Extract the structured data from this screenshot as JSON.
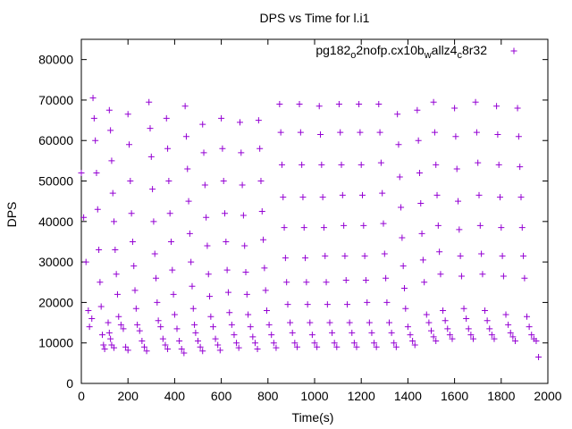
{
  "chart_data": {
    "type": "scatter",
    "title": "DPS vs Time for l.i1",
    "xlabel": "Time(s)",
    "ylabel": "DPS",
    "xlim": [
      0,
      2000
    ],
    "ylim": [
      0,
      85000
    ],
    "x_ticks": [
      0,
      200,
      400,
      600,
      800,
      1000,
      1200,
      1400,
      1600,
      1800,
      2000
    ],
    "y_ticks": [
      0,
      10000,
      20000,
      30000,
      40000,
      50000,
      60000,
      70000,
      80000
    ],
    "grid": false,
    "legend_position": "top-right",
    "marker": "+",
    "series": [
      {
        "name": "pg182_o2nofp.cx10b_wallz4_c8r32",
        "legend_parts": {
          "base": "pg182",
          "sub1": "o",
          "mid1": "2nofp.cx10b",
          "sub2": "w",
          "mid2": "allz4",
          "sub3": "c",
          "tail": "8r32"
        },
        "color": "#9400D3",
        "points": [
          [
            0,
            52000
          ],
          [
            10,
            41000
          ],
          [
            20,
            30000
          ],
          [
            30,
            18000
          ],
          [
            35,
            14000
          ],
          [
            45,
            16000
          ],
          [
            50,
            70500
          ],
          [
            55,
            65500
          ],
          [
            60,
            60000
          ],
          [
            65,
            52000
          ],
          [
            70,
            43000
          ],
          [
            75,
            33000
          ],
          [
            80,
            25000
          ],
          [
            85,
            19000
          ],
          [
            90,
            12000
          ],
          [
            95,
            9500
          ],
          [
            100,
            8500
          ],
          [
            115,
            15000
          ],
          [
            120,
            12500
          ],
          [
            125,
            11000
          ],
          [
            130,
            9500
          ],
          [
            140,
            8800
          ],
          [
            120,
            67500
          ],
          [
            125,
            62500
          ],
          [
            130,
            55000
          ],
          [
            135,
            47000
          ],
          [
            140,
            40000
          ],
          [
            145,
            33000
          ],
          [
            150,
            27000
          ],
          [
            155,
            22000
          ],
          [
            160,
            16500
          ],
          [
            170,
            14500
          ],
          [
            180,
            13500
          ],
          [
            190,
            9000
          ],
          [
            200,
            8200
          ],
          [
            200,
            66500
          ],
          [
            205,
            59000
          ],
          [
            210,
            50000
          ],
          [
            215,
            42000
          ],
          [
            220,
            35000
          ],
          [
            225,
            29000
          ],
          [
            230,
            23000
          ],
          [
            235,
            18500
          ],
          [
            240,
            14500
          ],
          [
            250,
            13000
          ],
          [
            260,
            10500
          ],
          [
            270,
            9000
          ],
          [
            280,
            8000
          ],
          [
            290,
            69500
          ],
          [
            295,
            63000
          ],
          [
            300,
            56000
          ],
          [
            305,
            48000
          ],
          [
            310,
            40000
          ],
          [
            315,
            32000
          ],
          [
            320,
            26000
          ],
          [
            325,
            20000
          ],
          [
            330,
            15500
          ],
          [
            340,
            14000
          ],
          [
            350,
            11000
          ],
          [
            360,
            9500
          ],
          [
            370,
            8500
          ],
          [
            365,
            65500
          ],
          [
            370,
            58000
          ],
          [
            375,
            50000
          ],
          [
            380,
            42000
          ],
          [
            385,
            35000
          ],
          [
            390,
            28000
          ],
          [
            395,
            22000
          ],
          [
            400,
            17000
          ],
          [
            410,
            13500
          ],
          [
            420,
            10500
          ],
          [
            430,
            8500
          ],
          [
            440,
            7500
          ],
          [
            445,
            68500
          ],
          [
            450,
            61000
          ],
          [
            455,
            53000
          ],
          [
            460,
            45000
          ],
          [
            465,
            37000
          ],
          [
            470,
            30000
          ],
          [
            475,
            24000
          ],
          [
            480,
            18500
          ],
          [
            485,
            14500
          ],
          [
            490,
            12500
          ],
          [
            500,
            10500
          ],
          [
            510,
            9000
          ],
          [
            520,
            8000
          ],
          [
            520,
            64000
          ],
          [
            525,
            57000
          ],
          [
            530,
            49000
          ],
          [
            535,
            41000
          ],
          [
            540,
            34000
          ],
          [
            545,
            27000
          ],
          [
            550,
            21500
          ],
          [
            555,
            16500
          ],
          [
            565,
            14000
          ],
          [
            575,
            11000
          ],
          [
            585,
            9500
          ],
          [
            595,
            8200
          ],
          [
            600,
            65500
          ],
          [
            605,
            58000
          ],
          [
            610,
            50000
          ],
          [
            615,
            42000
          ],
          [
            620,
            35000
          ],
          [
            625,
            28000
          ],
          [
            630,
            22500
          ],
          [
            635,
            17500
          ],
          [
            645,
            14500
          ],
          [
            655,
            12000
          ],
          [
            665,
            10000
          ],
          [
            675,
            8800
          ],
          [
            680,
            64500
          ],
          [
            685,
            57000
          ],
          [
            690,
            49000
          ],
          [
            695,
            41500
          ],
          [
            700,
            34000
          ],
          [
            705,
            27500
          ],
          [
            710,
            22000
          ],
          [
            715,
            17000
          ],
          [
            725,
            14000
          ],
          [
            735,
            11500
          ],
          [
            745,
            10000
          ],
          [
            755,
            8500
          ],
          [
            760,
            65000
          ],
          [
            765,
            58000
          ],
          [
            770,
            50000
          ],
          [
            775,
            42500
          ],
          [
            780,
            35500
          ],
          [
            785,
            28500
          ],
          [
            790,
            23000
          ],
          [
            795,
            18000
          ],
          [
            805,
            14500
          ],
          [
            815,
            12000
          ],
          [
            825,
            10000
          ],
          [
            835,
            8800
          ],
          [
            850,
            69000
          ],
          [
            855,
            62000
          ],
          [
            860,
            54000
          ],
          [
            865,
            46000
          ],
          [
            870,
            38500
          ],
          [
            875,
            31000
          ],
          [
            880,
            25000
          ],
          [
            885,
            19500
          ],
          [
            895,
            15000
          ],
          [
            905,
            12500
          ],
          [
            915,
            10000
          ],
          [
            925,
            9000
          ],
          [
            935,
            69000
          ],
          [
            940,
            62000
          ],
          [
            945,
            54000
          ],
          [
            950,
            46000
          ],
          [
            955,
            38500
          ],
          [
            960,
            31000
          ],
          [
            965,
            25000
          ],
          [
            970,
            19500
          ],
          [
            980,
            15000
          ],
          [
            990,
            12000
          ],
          [
            1000,
            10000
          ],
          [
            1010,
            9000
          ],
          [
            1020,
            68500
          ],
          [
            1025,
            61500
          ],
          [
            1030,
            54000
          ],
          [
            1035,
            46000
          ],
          [
            1040,
            38500
          ],
          [
            1045,
            31500
          ],
          [
            1050,
            25000
          ],
          [
            1055,
            19500
          ],
          [
            1065,
            15000
          ],
          [
            1075,
            12500
          ],
          [
            1085,
            10000
          ],
          [
            1095,
            9000
          ],
          [
            1105,
            69000
          ],
          [
            1110,
            62000
          ],
          [
            1115,
            54000
          ],
          [
            1120,
            46500
          ],
          [
            1125,
            39000
          ],
          [
            1130,
            31500
          ],
          [
            1135,
            25500
          ],
          [
            1140,
            19500
          ],
          [
            1150,
            15000
          ],
          [
            1160,
            12500
          ],
          [
            1170,
            10000
          ],
          [
            1180,
            9000
          ],
          [
            1190,
            69000
          ],
          [
            1195,
            62000
          ],
          [
            1200,
            54000
          ],
          [
            1205,
            46500
          ],
          [
            1210,
            39000
          ],
          [
            1215,
            31500
          ],
          [
            1220,
            25500
          ],
          [
            1225,
            20000
          ],
          [
            1235,
            15000
          ],
          [
            1245,
            12500
          ],
          [
            1255,
            10000
          ],
          [
            1265,
            9000
          ],
          [
            1275,
            69000
          ],
          [
            1280,
            62000
          ],
          [
            1285,
            54500
          ],
          [
            1290,
            47000
          ],
          [
            1295,
            39500
          ],
          [
            1300,
            32000
          ],
          [
            1305,
            26000
          ],
          [
            1310,
            20000
          ],
          [
            1320,
            15000
          ],
          [
            1330,
            12500
          ],
          [
            1340,
            10000
          ],
          [
            1350,
            9000
          ],
          [
            1355,
            66500
          ],
          [
            1360,
            59000
          ],
          [
            1365,
            51000
          ],
          [
            1370,
            43500
          ],
          [
            1375,
            36000
          ],
          [
            1380,
            29000
          ],
          [
            1385,
            23500
          ],
          [
            1390,
            18500
          ],
          [
            1400,
            14000
          ],
          [
            1410,
            12000
          ],
          [
            1420,
            10500
          ],
          [
            1430,
            9500
          ],
          [
            1440,
            67500
          ],
          [
            1445,
            60000
          ],
          [
            1450,
            52000
          ],
          [
            1455,
            44500
          ],
          [
            1460,
            37000
          ],
          [
            1465,
            30500
          ],
          [
            1470,
            25000
          ],
          [
            1480,
            17000
          ],
          [
            1490,
            15000
          ],
          [
            1500,
            13000
          ],
          [
            1510,
            11500
          ],
          [
            1520,
            10500
          ],
          [
            1510,
            69500
          ],
          [
            1515,
            62000
          ],
          [
            1520,
            54000
          ],
          [
            1525,
            46500
          ],
          [
            1530,
            39000
          ],
          [
            1535,
            32500
          ],
          [
            1540,
            27000
          ],
          [
            1550,
            18000
          ],
          [
            1560,
            15500
          ],
          [
            1570,
            13500
          ],
          [
            1580,
            12000
          ],
          [
            1590,
            11000
          ],
          [
            1600,
            68000
          ],
          [
            1605,
            61000
          ],
          [
            1610,
            53000
          ],
          [
            1615,
            45000
          ],
          [
            1620,
            38000
          ],
          [
            1625,
            31500
          ],
          [
            1630,
            26500
          ],
          [
            1640,
            18500
          ],
          [
            1650,
            16000
          ],
          [
            1660,
            13500
          ],
          [
            1670,
            12000
          ],
          [
            1680,
            11000
          ],
          [
            1690,
            69500
          ],
          [
            1695,
            62000
          ],
          [
            1700,
            54500
          ],
          [
            1705,
            46500
          ],
          [
            1710,
            39000
          ],
          [
            1715,
            32000
          ],
          [
            1720,
            27000
          ],
          [
            1730,
            18000
          ],
          [
            1740,
            15500
          ],
          [
            1750,
            13500
          ],
          [
            1760,
            12000
          ],
          [
            1770,
            11000
          ],
          [
            1780,
            68500
          ],
          [
            1785,
            61500
          ],
          [
            1790,
            54000
          ],
          [
            1795,
            46000
          ],
          [
            1800,
            38500
          ],
          [
            1805,
            31500
          ],
          [
            1810,
            26500
          ],
          [
            1820,
            17000
          ],
          [
            1830,
            14500
          ],
          [
            1840,
            12500
          ],
          [
            1850,
            11500
          ],
          [
            1860,
            10500
          ],
          [
            1870,
            68000
          ],
          [
            1875,
            61000
          ],
          [
            1880,
            53500
          ],
          [
            1885,
            46000
          ],
          [
            1890,
            38500
          ],
          [
            1895,
            31500
          ],
          [
            1900,
            26000
          ],
          [
            1910,
            16500
          ],
          [
            1920,
            14000
          ],
          [
            1930,
            12000
          ],
          [
            1940,
            11000
          ],
          [
            1950,
            10500
          ],
          [
            1960,
            6500
          ]
        ]
      }
    ]
  }
}
